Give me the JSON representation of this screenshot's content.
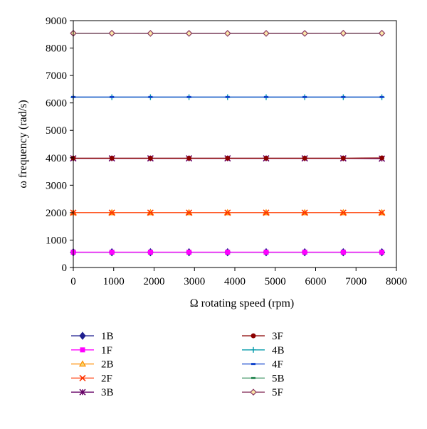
{
  "chart_data": {
    "type": "line",
    "title": "",
    "xlabel": "Ω rotating speed (rpm)",
    "ylabel": "ω frequency (rad/s)",
    "xlim": [
      0,
      8000
    ],
    "ylim": [
      0,
      9000
    ],
    "x_ticks": [
      "0",
      "1000",
      "2000",
      "3000",
      "4000",
      "5000",
      "6000",
      "7000",
      "8000"
    ],
    "y_ticks": [
      "0",
      "1000",
      "2000",
      "3000",
      "4000",
      "5000",
      "6000",
      "7000",
      "8000",
      "9000"
    ],
    "grid": false,
    "legend_position": "bottom",
    "x": [
      0,
      955,
      1910,
      2865,
      3820,
      4775,
      5730,
      6685,
      7640
    ],
    "series": [
      {
        "name": "1B",
        "color": "#1f1f8f",
        "marker": "diamond",
        "values": [
          555,
          555,
          555,
          555,
          555,
          555,
          555,
          555,
          555
        ]
      },
      {
        "name": "1F",
        "color": "#ff00ff",
        "marker": "square",
        "values": [
          560,
          560,
          560,
          560,
          560,
          560,
          560,
          560,
          560
        ]
      },
      {
        "name": "2B",
        "color": "#ff8c00",
        "marker": "triangle",
        "values": [
          2000,
          2000,
          2000,
          2000,
          2000,
          2000,
          2000,
          2000,
          2000
        ]
      },
      {
        "name": "2F",
        "color": "#ff3300",
        "marker": "x",
        "values": [
          2000,
          2000,
          2000,
          2000,
          2000,
          2000,
          2000,
          2000,
          2000
        ]
      },
      {
        "name": "3B",
        "color": "#660066",
        "marker": "star",
        "values": [
          3980,
          3980,
          3980,
          3980,
          3980,
          3980,
          3980,
          3980,
          3970
        ]
      },
      {
        "name": "3F",
        "color": "#8b0000",
        "marker": "circle",
        "values": [
          3985,
          3985,
          3985,
          3985,
          3985,
          3985,
          3985,
          3985,
          3995
        ]
      },
      {
        "name": "4B",
        "color": "#0099aa",
        "marker": "plus",
        "values": [
          6210,
          6210,
          6210,
          6210,
          6210,
          6210,
          6210,
          6210,
          6210
        ]
      },
      {
        "name": "4F",
        "color": "#1144cc",
        "marker": "dash",
        "values": [
          6215,
          6215,
          6215,
          6215,
          6215,
          6215,
          6215,
          6215,
          6215
        ]
      },
      {
        "name": "5B",
        "color": "#2e8b57",
        "marker": "dash",
        "values": [
          8535,
          8535,
          8535,
          8535,
          8535,
          8535,
          8535,
          8535,
          8535
        ]
      },
      {
        "name": "5F",
        "color": "#8b3a62",
        "marker": "diamond-open",
        "values": [
          8540,
          8540,
          8535,
          8535,
          8535,
          8535,
          8535,
          8540,
          8540
        ]
      }
    ]
  }
}
